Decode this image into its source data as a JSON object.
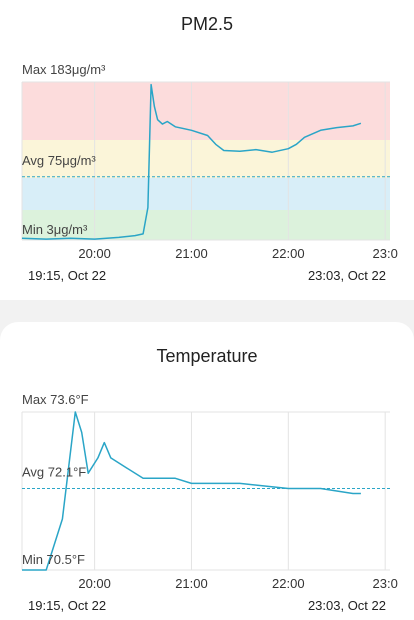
{
  "colors": {
    "line": "#2aa5c7",
    "avg_line": "#2aa5c7",
    "band_red": "#fcdcdc",
    "band_yellow": "#fbf5d9",
    "band_blue": "#d8eef8",
    "band_green": "#dcf2dc",
    "grid": "#e3e3e3",
    "card_bg": "#ffffff",
    "page_bg": "#f2f2f2"
  },
  "pm25": {
    "title": "PM2.5",
    "max_label": "Max 183μg/m³",
    "avg_label": "Avg 75μg/m³",
    "min_label": "Min 3μg/m³",
    "range_start": "19:15, Oct 22",
    "range_end": "23:03, Oct 22",
    "chart_data": {
      "type": "line",
      "title": "PM2.5",
      "x_ticks": [
        "20:00",
        "21:00",
        "22:00",
        "23:0"
      ],
      "ylim": [
        3,
        183
      ],
      "avg": 75,
      "x": [
        "19:15",
        "19:30",
        "19:45",
        "20:00",
        "20:15",
        "20:25",
        "20:30",
        "20:33",
        "20:35",
        "20:37",
        "20:39",
        "20:42",
        "20:45",
        "20:50",
        "21:00",
        "21:10",
        "21:15",
        "21:20",
        "21:30",
        "21:40",
        "21:50",
        "22:00",
        "22:05",
        "22:10",
        "22:20",
        "22:30",
        "22:40",
        "22:45"
      ],
      "values": [
        5,
        4,
        5,
        4,
        6,
        8,
        10,
        40,
        180,
        155,
        140,
        135,
        138,
        132,
        128,
        122,
        112,
        105,
        104,
        106,
        103,
        107,
        112,
        120,
        128,
        131,
        133,
        136
      ]
    }
  },
  "temperature": {
    "title": "Temperature",
    "max_label": "Max 73.6°F",
    "avg_label": "Avg 72.1°F",
    "min_label": "Min 70.5°F",
    "range_start": "19:15, Oct 22",
    "range_end": "23:03, Oct 22",
    "chart_data": {
      "type": "line",
      "title": "Temperature",
      "x_ticks": [
        "20:00",
        "21:00",
        "22:00",
        "23:0"
      ],
      "ylim": [
        70.5,
        73.6
      ],
      "avg": 72.1,
      "x": [
        "19:15",
        "19:30",
        "19:40",
        "19:48",
        "19:52",
        "19:56",
        "20:02",
        "20:06",
        "20:10",
        "20:20",
        "20:30",
        "20:50",
        "21:00",
        "21:10",
        "21:30",
        "22:00",
        "22:20",
        "22:40",
        "22:45"
      ],
      "values": [
        70.5,
        70.5,
        71.5,
        73.6,
        73.2,
        72.4,
        72.7,
        73.0,
        72.7,
        72.5,
        72.3,
        72.3,
        72.2,
        72.2,
        72.2,
        72.1,
        72.1,
        72.0,
        72.0
      ]
    }
  }
}
